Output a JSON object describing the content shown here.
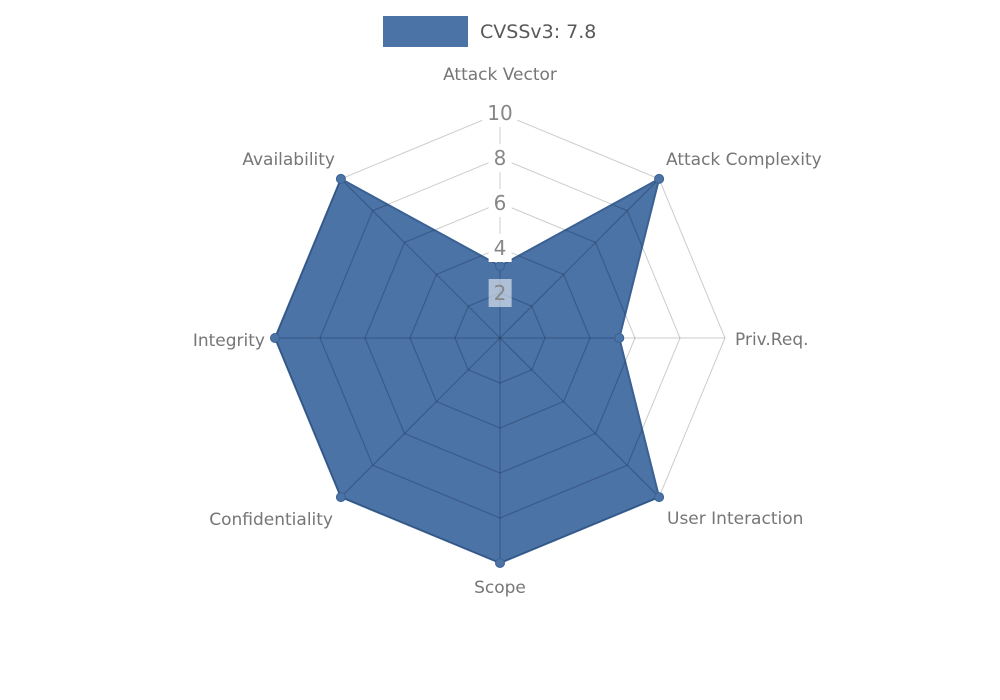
{
  "legend": {
    "label": "CVSSv3: 7.8"
  },
  "colors": {
    "fill": "#4C73A6",
    "edge": "#3A6194",
    "grid": "rgba(0,0,0,0.20)",
    "grid_over_fill": "rgba(15,35,65,0.30)",
    "label_text": "#767676",
    "tick_text": "#878787"
  },
  "chart_data": {
    "type": "radar",
    "title": "CVSSv3: 7.8",
    "categories": [
      "Attack Vector",
      "Attack Complexity",
      "Priv.Req.",
      "User Interaction",
      "Scope",
      "Confidentiality",
      "Integrity",
      "Availability"
    ],
    "series": [
      {
        "name": "CVSSv3: 7.8",
        "values": [
          3.2,
          10,
          5.3,
          10,
          10,
          10,
          10,
          10
        ]
      }
    ],
    "radial_ticks": [
      2,
      4,
      6,
      8,
      10
    ],
    "rlim": [
      0,
      10
    ],
    "grid": "on",
    "legend_position": "top-center",
    "start_angle_deg": -90,
    "direction": "clockwise"
  }
}
